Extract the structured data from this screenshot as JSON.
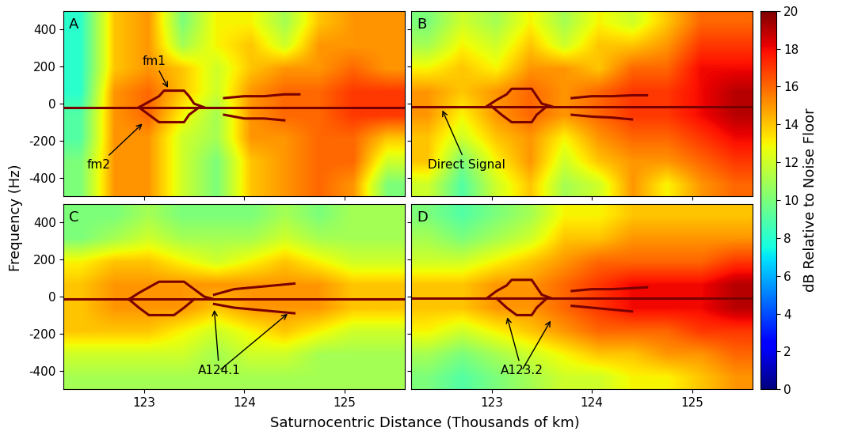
{
  "xlabel": "Saturnocentric Distance (Thousands of km)",
  "ylabel": "Frequency (Hz)",
  "colorbar": {
    "label": "dB Relative to Noise Floor",
    "range": [
      0,
      20
    ],
    "ticks": [
      0,
      2,
      4,
      6,
      8,
      10,
      12,
      14,
      16,
      18,
      20
    ]
  },
  "chart_data": [
    {
      "type": "heatmap",
      "panel_label": "A",
      "tick_labels": "y",
      "color": "#7a0000",
      "xlim": [
        122.2,
        125.6
      ],
      "ylim": [
        -500,
        500
      ],
      "xticks": [
        123,
        124,
        125
      ],
      "yticks": [
        -400,
        -200,
        0,
        200,
        400
      ],
      "x_edges": [
        122.2,
        122.54,
        122.88,
        123.22,
        123.56,
        123.9,
        124.24,
        124.58,
        124.92,
        125.26,
        125.6
      ],
      "y_edges": [
        -500,
        -375,
        -250,
        -125,
        0,
        125,
        250,
        375,
        500
      ],
      "cells": [
        [
          10,
          15,
          15,
          12,
          10,
          14,
          15,
          16,
          15,
          10
        ],
        [
          10,
          15,
          15,
          12,
          10,
          14,
          15,
          16,
          16,
          12
        ],
        [
          9,
          15,
          15,
          12,
          11,
          15,
          15,
          16,
          16,
          14
        ],
        [
          9,
          15,
          16,
          13,
          11,
          15,
          16,
          16,
          17,
          17
        ],
        [
          8,
          15,
          16,
          14,
          12,
          15,
          16,
          16,
          17,
          17
        ],
        [
          8,
          14,
          15,
          14,
          12,
          14,
          15,
          15,
          16,
          15
        ],
        [
          8,
          14,
          15,
          11,
          13,
          14,
          12,
          15,
          15,
          15
        ],
        [
          8,
          14,
          15,
          10,
          13,
          13,
          11,
          14,
          15,
          15
        ]
      ],
      "lines": [
        {
          "x": [
            122.2,
            125.6
          ],
          "y": [
            -20,
            -20
          ]
        },
        {
          "x": [
            122.95,
            123.05,
            123.15,
            123.2,
            123.4,
            123.45,
            123.5,
            123.6
          ],
          "y": [
            -20,
            10,
            40,
            70,
            70,
            40,
            0,
            -20
          ]
        },
        {
          "x": [
            123.8,
            124.0,
            124.2,
            124.4,
            124.55
          ],
          "y": [
            30,
            40,
            40,
            50,
            50
          ]
        },
        {
          "x": [
            122.95,
            123.05,
            123.15,
            123.4,
            123.45,
            123.55
          ],
          "y": [
            -20,
            -60,
            -100,
            -100,
            -60,
            -20
          ]
        },
        {
          "x": [
            123.8,
            124.0,
            124.2,
            124.4
          ],
          "y": [
            -60,
            -80,
            -80,
            -90
          ]
        }
      ],
      "annotations": [
        {
          "text": "fm1",
          "xytext": [
            123.1,
            230
          ],
          "arrow_to": [
            [
              123.25,
              75
            ]
          ]
        },
        {
          "text": "fm2",
          "xytext": [
            122.55,
            -330
          ],
          "arrow_to": [
            [
              123.0,
              -100
            ]
          ]
        }
      ]
    },
    {
      "type": "heatmap",
      "panel_label": "B",
      "tick_labels": false,
      "color": "#7a0000",
      "xlim": [
        122.2,
        125.6
      ],
      "ylim": [
        -500,
        500
      ],
      "xticks": [
        123,
        124,
        125
      ],
      "yticks": [
        -400,
        -200,
        0,
        200,
        400
      ],
      "x_edges": [
        122.2,
        122.54,
        122.88,
        123.22,
        123.56,
        123.9,
        124.24,
        124.58,
        124.92,
        125.26,
        125.6
      ],
      "y_edges": [
        -500,
        -375,
        -250,
        -125,
        0,
        125,
        250,
        375,
        500
      ],
      "cells": [
        [
          12,
          9,
          12,
          14,
          11,
          12,
          15,
          13,
          15,
          16
        ],
        [
          14,
          10,
          13,
          15,
          12,
          14,
          15,
          15,
          16,
          17
        ],
        [
          14,
          12,
          14,
          15,
          13,
          15,
          16,
          16,
          17,
          18
        ],
        [
          15,
          13,
          15,
          16,
          15,
          16,
          17,
          17,
          18,
          19
        ],
        [
          15,
          14,
          15,
          16,
          15,
          16,
          17,
          17,
          18,
          19
        ],
        [
          13,
          14,
          13,
          15,
          15,
          14,
          16,
          16,
          18,
          18
        ],
        [
          11,
          13,
          12,
          14,
          12,
          14,
          14,
          15,
          17,
          17
        ],
        [
          10,
          12,
          11,
          13,
          11,
          13,
          12,
          14,
          16,
          16
        ]
      ],
      "lines": [
        {
          "x": [
            122.2,
            125.6
          ],
          "y": [
            -15,
            -15
          ]
        },
        {
          "x": [
            122.95,
            123.05,
            123.15,
            123.2,
            123.4,
            123.45,
            123.5,
            123.6
          ],
          "y": [
            -15,
            20,
            50,
            80,
            80,
            40,
            0,
            -15
          ]
        },
        {
          "x": [
            123.8,
            124.0,
            124.2,
            124.4,
            124.55
          ],
          "y": [
            30,
            40,
            40,
            45,
            45
          ]
        },
        {
          "x": [
            123.0,
            123.1,
            123.2,
            123.4,
            123.45,
            123.55
          ],
          "y": [
            -15,
            -60,
            -100,
            -100,
            -60,
            -15
          ]
        },
        {
          "x": [
            123.8,
            124.0,
            124.2,
            124.4
          ],
          "y": [
            -60,
            -70,
            -75,
            -85
          ]
        }
      ],
      "annotations": [
        {
          "text": "Direct Signal",
          "xytext": [
            122.75,
            -330
          ],
          "arrow_to": [
            [
              122.5,
              -25
            ]
          ]
        }
      ]
    },
    {
      "type": "heatmap",
      "panel_label": "C",
      "color": "#7a0000",
      "xlim": [
        122.2,
        125.6
      ],
      "ylim": [
        -500,
        500
      ],
      "xticks": [
        123,
        124,
        125
      ],
      "yticks": [
        -400,
        -200,
        0,
        200,
        400
      ],
      "x_edges": [
        122.2,
        122.54,
        122.88,
        123.22,
        123.56,
        123.9,
        124.24,
        124.58,
        124.92,
        125.26,
        125.6
      ],
      "y_edges": [
        -500,
        -375,
        -250,
        -125,
        0,
        125,
        250,
        375,
        500
      ],
      "cells": [
        [
          11,
          11,
          11,
          11,
          11,
          11,
          11,
          11,
          11,
          11
        ],
        [
          12,
          12,
          12,
          12,
          11,
          12,
          12,
          11,
          11,
          11
        ],
        [
          14,
          14,
          14,
          13,
          12,
          13,
          14,
          13,
          12,
          12
        ],
        [
          14,
          15,
          15,
          15,
          14,
          15,
          15,
          15,
          14,
          14
        ],
        [
          14,
          15,
          15,
          15,
          15,
          15,
          15,
          15,
          14,
          14
        ],
        [
          13,
          14,
          14,
          13,
          12,
          13,
          14,
          13,
          12,
          12
        ],
        [
          10,
          11,
          12,
          11,
          11,
          11,
          12,
          11,
          11,
          11
        ],
        [
          10,
          10,
          11,
          10,
          10,
          10,
          11,
          10,
          11,
          11
        ]
      ],
      "lines": [
        {
          "x": [
            122.2,
            125.6
          ],
          "y": [
            -15,
            -15
          ]
        },
        {
          "x": [
            122.85,
            122.95,
            123.05,
            123.15,
            123.4,
            123.5,
            123.6,
            123.7
          ],
          "y": [
            -15,
            20,
            50,
            80,
            80,
            40,
            0,
            -15
          ]
        },
        {
          "x": [
            123.7,
            123.9,
            124.1,
            124.3,
            124.5
          ],
          "y": [
            10,
            40,
            50,
            60,
            70
          ]
        },
        {
          "x": [
            122.85,
            122.95,
            123.05,
            123.3,
            123.4,
            123.5
          ],
          "y": [
            -15,
            -60,
            -100,
            -100,
            -60,
            -15
          ]
        },
        {
          "x": [
            123.7,
            123.9,
            124.1,
            124.3,
            124.5
          ],
          "y": [
            -40,
            -60,
            -70,
            -80,
            -90
          ]
        }
      ],
      "annotations": [
        {
          "text": "A124.1",
          "xytext": [
            123.75,
            -400
          ],
          "arrow_to": [
            [
              123.7,
              -60
            ],
            [
              124.45,
              -85
            ]
          ]
        }
      ]
    },
    {
      "type": "heatmap",
      "panel_label": "D",
      "tick_labels": "x",
      "color": "#7a0000",
      "xlim": [
        122.2,
        125.6
      ],
      "ylim": [
        -500,
        500
      ],
      "xticks": [
        123,
        124,
        125
      ],
      "yticks": [
        -400,
        -200,
        0,
        200,
        400
      ],
      "x_edges": [
        122.2,
        122.54,
        122.88,
        123.22,
        123.56,
        123.9,
        124.24,
        124.58,
        124.92,
        125.26,
        125.6
      ],
      "y_edges": [
        -500,
        -375,
        -250,
        -125,
        0,
        125,
        250,
        375,
        500
      ],
      "cells": [
        [
          10,
          9,
          10,
          11,
          12,
          12,
          13,
          13,
          14,
          15
        ],
        [
          11,
          10,
          11,
          12,
          13,
          14,
          14,
          15,
          15,
          16
        ],
        [
          13,
          12,
          13,
          14,
          15,
          16,
          16,
          16,
          17,
          17
        ],
        [
          14,
          14,
          15,
          15,
          16,
          17,
          18,
          18,
          18,
          19
        ],
        [
          14,
          14,
          15,
          15,
          16,
          17,
          18,
          18,
          18,
          19
        ],
        [
          12,
          12,
          13,
          14,
          15,
          16,
          16,
          16,
          16,
          17
        ],
        [
          11,
          10,
          11,
          12,
          14,
          14,
          15,
          15,
          15,
          15
        ],
        [
          10,
          9,
          10,
          11,
          13,
          13,
          14,
          14,
          14,
          14
        ]
      ],
      "lines": [
        {
          "x": [
            122.2,
            125.6
          ],
          "y": [
            -10,
            -10
          ]
        },
        {
          "x": [
            122.95,
            123.05,
            123.15,
            123.2,
            123.4,
            123.45,
            123.5,
            123.6
          ],
          "y": [
            -10,
            30,
            60,
            90,
            90,
            50,
            10,
            -10
          ]
        },
        {
          "x": [
            123.8,
            124.0,
            124.2,
            124.4,
            124.55
          ],
          "y": [
            30,
            40,
            40,
            45,
            50
          ]
        },
        {
          "x": [
            123.05,
            123.15,
            123.25,
            123.4,
            123.45,
            123.55
          ],
          "y": [
            -10,
            -60,
            -100,
            -100,
            -60,
            -10
          ]
        },
        {
          "x": [
            123.8,
            124.0,
            124.2,
            124.4
          ],
          "y": [
            -50,
            -60,
            -70,
            -80
          ]
        }
      ],
      "annotations": [
        {
          "text": "A123.2",
          "xytext": [
            123.3,
            -400
          ],
          "arrow_to": [
            [
              123.15,
              -100
            ],
            [
              123.6,
              -120
            ]
          ]
        }
      ]
    }
  ]
}
